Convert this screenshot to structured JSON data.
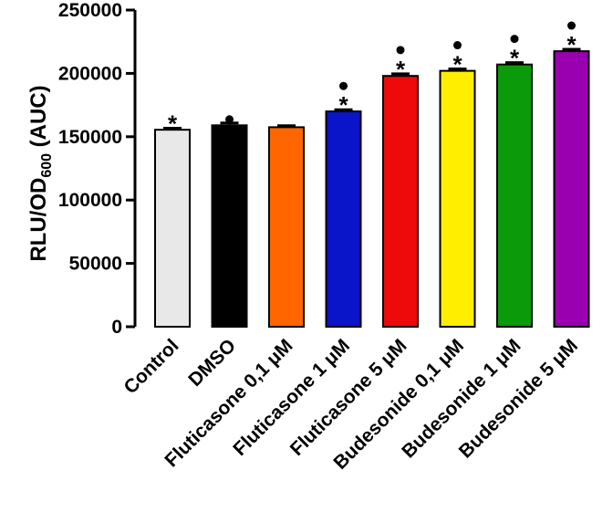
{
  "chart_data": {
    "type": "bar",
    "title": "",
    "xlabel": "",
    "ylabel": {
      "main": "RLU/OD",
      "subscript": "600",
      "suffix": " (AUC)"
    },
    "ylim": [
      0,
      250000
    ],
    "yticks": [
      0,
      50000,
      100000,
      150000,
      200000,
      250000
    ],
    "categories": [
      "Control",
      "DMSO",
      "Fluticasone 0,1 μM",
      "Fluticasone 1 μM",
      "Fluticasone 5 μM",
      "Budesonide 0,1 μM",
      "Budesonide 1 μM",
      "Budesonide 5 μM"
    ],
    "values": [
      155500,
      159000,
      157500,
      170000,
      198000,
      202000,
      207000,
      217500
    ],
    "errors": [
      1200,
      1800,
      1200,
      1300,
      1700,
      1500,
      1500,
      1500
    ],
    "colors": [
      "#e8e8e8",
      "#000000",
      "#ff6600",
      "#0a14c8",
      "#ee0a0a",
      "#ffee00",
      "#0a9a0a",
      "#9a00b0"
    ],
    "annotations": [
      {
        "star": "*",
        "dot": false
      },
      {
        "star": "",
        "dot": true
      },
      {
        "star": "",
        "dot": false
      },
      {
        "star": "*",
        "dot": true
      },
      {
        "star": "*",
        "dot": true
      },
      {
        "star": "*",
        "dot": true
      },
      {
        "star": "*",
        "dot": true
      },
      {
        "star": "*",
        "dot": true
      }
    ]
  }
}
